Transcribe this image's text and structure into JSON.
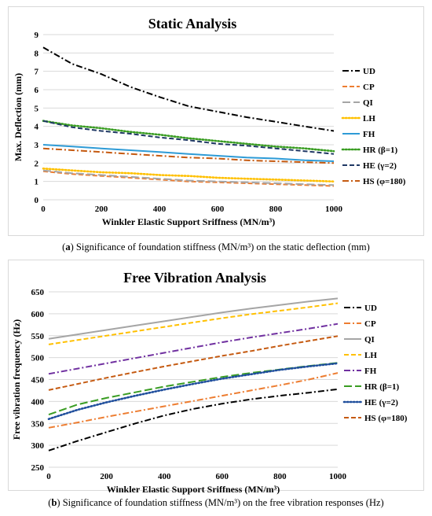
{
  "captions": [
    {
      "tag": "a",
      "text": "Significance of foundation stiffness (MN/m³) on the static deflection (mm)"
    },
    {
      "tag": "b",
      "text": "Significance of foundation stiffness (MN/m³) on the free vibration responses (Hz)"
    }
  ],
  "chart_data": [
    {
      "type": "line",
      "title": "Static Analysis",
      "xlabel": "Winkler Elastic Support Sriffness (MN/m³)",
      "ylabel": "Max. Deflection (mm)",
      "xlim": [
        0,
        1000
      ],
      "ylim": [
        0,
        9
      ],
      "xticks": [
        0,
        200,
        400,
        600,
        800,
        1000
      ],
      "yticks": [
        0,
        1,
        2,
        3,
        4,
        5,
        6,
        7,
        8,
        9
      ],
      "grid": "horizontal",
      "legend_position": "right",
      "x": [
        0,
        100,
        200,
        300,
        400,
        500,
        600,
        700,
        800,
        900,
        1000
      ],
      "series": [
        {
          "name": "UD",
          "color": "#000000",
          "dash": "dashdot",
          "values": [
            8.3,
            7.4,
            6.85,
            6.15,
            5.6,
            5.1,
            4.8,
            4.5,
            4.25,
            4.0,
            3.75
          ]
        },
        {
          "name": "CP",
          "color": "#ed7d31",
          "dash": "dash",
          "values": [
            1.55,
            1.4,
            1.3,
            1.2,
            1.1,
            1.0,
            0.95,
            0.9,
            0.85,
            0.8,
            0.75
          ]
        },
        {
          "name": "QI",
          "color": "#a5a5a5",
          "dash": "longdash",
          "values": [
            1.6,
            1.45,
            1.35,
            1.25,
            1.15,
            1.05,
            1.0,
            0.95,
            0.9,
            0.85,
            0.8
          ]
        },
        {
          "name": "LH",
          "color": "#ffc000",
          "dash": "dot",
          "values": [
            1.7,
            1.6,
            1.5,
            1.45,
            1.35,
            1.3,
            1.2,
            1.15,
            1.1,
            1.05,
            1.0
          ]
        },
        {
          "name": "FH",
          "color": "#2e9bd6",
          "dash": "solid",
          "values": [
            3.0,
            2.9,
            2.8,
            2.7,
            2.6,
            2.5,
            2.4,
            2.3,
            2.25,
            2.15,
            2.1
          ]
        },
        {
          "name": "HR (β=1)",
          "color": "#3a9d23",
          "dash": "dot",
          "values": [
            4.3,
            4.05,
            3.9,
            3.7,
            3.55,
            3.35,
            3.2,
            3.05,
            2.9,
            2.8,
            2.65
          ]
        },
        {
          "name": "HE (γ=2)",
          "color": "#1f3864",
          "dash": "dash",
          "values": [
            4.3,
            3.95,
            3.75,
            3.6,
            3.4,
            3.25,
            3.05,
            2.95,
            2.8,
            2.65,
            2.5
          ]
        },
        {
          "name": "HS (φ=180)",
          "color": "#c55a11",
          "dash": "dashdot",
          "values": [
            2.8,
            2.7,
            2.6,
            2.5,
            2.4,
            2.3,
            2.25,
            2.15,
            2.1,
            2.05,
            2.0
          ]
        }
      ]
    },
    {
      "type": "line",
      "title": "Free Vibration Analysis",
      "xlabel": "Winkler Elastic Support Sriffness (MN/m³)",
      "ylabel": "Free vibration frequency (Hz)",
      "xlim": [
        0,
        1000
      ],
      "ylim": [
        250,
        650
      ],
      "xticks": [
        0,
        200,
        400,
        600,
        800,
        1000
      ],
      "yticks": [
        250,
        300,
        350,
        400,
        450,
        500,
        550,
        600,
        650
      ],
      "grid": "horizontal",
      "legend_position": "right",
      "x": [
        0,
        100,
        200,
        300,
        400,
        500,
        600,
        700,
        800,
        900,
        1000
      ],
      "series": [
        {
          "name": "UD",
          "color": "#000000",
          "dash": "dashdot",
          "values": [
            288,
            310,
            330,
            350,
            368,
            383,
            395,
            405,
            413,
            420,
            428
          ]
        },
        {
          "name": "CP",
          "color": "#ed7d31",
          "dash": "dashdot",
          "values": [
            340,
            352,
            365,
            377,
            389,
            401,
            413,
            425,
            437,
            450,
            465
          ]
        },
        {
          "name": "QI",
          "color": "#a5a5a5",
          "dash": "solid",
          "values": [
            543,
            553,
            563,
            573,
            583,
            593,
            603,
            612,
            620,
            628,
            635
          ]
        },
        {
          "name": "LH",
          "color": "#ffc000",
          "dash": "dash",
          "values": [
            530,
            540,
            550,
            560,
            570,
            580,
            590,
            599,
            607,
            615,
            624
          ]
        },
        {
          "name": "FH",
          "color": "#7030a0",
          "dash": "dashdot",
          "values": [
            463,
            475,
            487,
            499,
            511,
            523,
            535,
            546,
            556,
            566,
            577
          ]
        },
        {
          "name": "HR (β=1)",
          "color": "#3a9d23",
          "dash": "longdash",
          "values": [
            370,
            393,
            408,
            421,
            434,
            445,
            456,
            465,
            473,
            481,
            488
          ]
        },
        {
          "name": "HE (γ=2)",
          "color": "#1f4e9c",
          "dash": "dot",
          "values": [
            360,
            381,
            398,
            413,
            427,
            440,
            452,
            462,
            472,
            480,
            487
          ]
        },
        {
          "name": "HS (φ=180)",
          "color": "#c55a11",
          "dash": "dash",
          "values": [
            426,
            440,
            454,
            467,
            480,
            492,
            504,
            515,
            527,
            538,
            549
          ]
        }
      ]
    }
  ]
}
